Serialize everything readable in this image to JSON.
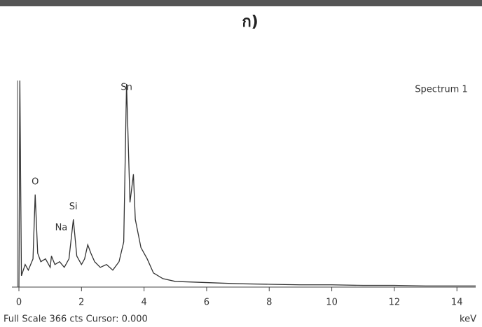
{
  "chart_data": {
    "type": "line",
    "label": "ก)",
    "legend": "Spectrum 1",
    "footer": "Full Scale 366 cts Cursor: 0.000",
    "x_label": "keV",
    "x": [
      0,
      0.03,
      0.08,
      0.2,
      0.3,
      0.45,
      0.52,
      0.6,
      0.7,
      0.85,
      1.0,
      1.04,
      1.15,
      1.3,
      1.45,
      1.6,
      1.74,
      1.85,
      2.0,
      2.1,
      2.2,
      2.3,
      2.42,
      2.6,
      2.8,
      3.0,
      3.2,
      3.35,
      3.44,
      3.55,
      3.66,
      3.72,
      3.9,
      4.1,
      4.3,
      4.6,
      5.0,
      6,
      7,
      8,
      9,
      10,
      11,
      12,
      13,
      14,
      14.6
    ],
    "series": [
      {
        "name": "Spectrum 1",
        "color": "#333333",
        "values": [
          0,
          366,
          20,
          40,
          30,
          50,
          164,
          60,
          45,
          50,
          35,
          55,
          40,
          45,
          35,
          50,
          120,
          55,
          40,
          50,
          75,
          60,
          45,
          35,
          40,
          30,
          45,
          80,
          360,
          150,
          200,
          120,
          70,
          50,
          25,
          15,
          10,
          8,
          6,
          5,
          4,
          4,
          3,
          3,
          2,
          2,
          2
        ]
      }
    ],
    "annotations": [
      {
        "text": "O",
        "x": 0.52
      },
      {
        "text": "Na",
        "x": 1.04
      },
      {
        "text": "Si",
        "x": 1.74
      },
      {
        "text": "Sn",
        "x": 3.44
      }
    ],
    "xlim": [
      0,
      14.6
    ],
    "ylim": [
      0,
      366
    ],
    "xticks": [
      0,
      2,
      4,
      6,
      8,
      10,
      12,
      14
    ]
  }
}
